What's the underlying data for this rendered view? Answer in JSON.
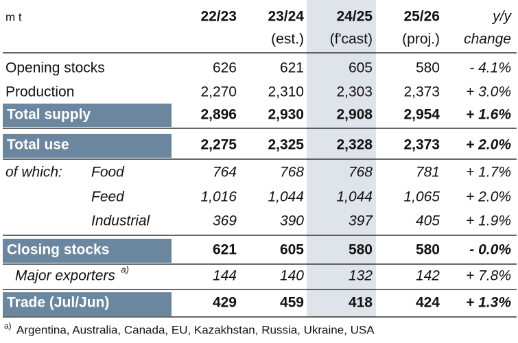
{
  "header": {
    "unit": "m t",
    "columns": [
      [
        "22/23"
      ],
      [
        "23/24",
        "(est.)"
      ],
      [
        "24/25",
        "(f'cast)"
      ],
      [
        "25/26",
        "(proj.)"
      ],
      [
        "y/y",
        "change"
      ]
    ]
  },
  "table": {
    "rows": [
      {
        "label": "Opening stocks",
        "cells": [
          "626",
          "621",
          "605",
          "580",
          "- 4.1%"
        ]
      },
      {
        "label": "Production",
        "cells": [
          "2,270",
          "2,310",
          "2,303",
          "2,373",
          "+ 3.0%"
        ]
      },
      {
        "label": "Total supply",
        "cells": [
          "2,896",
          "2,930",
          "2,908",
          "2,954",
          "+ 1.6%"
        ]
      },
      {
        "label": "Total use",
        "cells": [
          "2,275",
          "2,325",
          "2,328",
          "2,373",
          "+ 2.0%"
        ]
      },
      {
        "group": "of which:",
        "label": "Food",
        "cells": [
          "764",
          "768",
          "768",
          "781",
          "+ 1.7%"
        ]
      },
      {
        "label": "Feed",
        "cells": [
          "1,016",
          "1,044",
          "1,044",
          "1,065",
          "+ 2.0%"
        ]
      },
      {
        "label": "Industrial",
        "cells": [
          "369",
          "390",
          "397",
          "405",
          "+ 1.9%"
        ]
      },
      {
        "label": "Closing stocks",
        "cells": [
          "621",
          "605",
          "580",
          "580",
          "- 0.0%"
        ]
      },
      {
        "label": "Major exporters",
        "note": "a)",
        "cells": [
          "144",
          "140",
          "132",
          "142",
          "+ 7.8%"
        ]
      },
      {
        "label": "Trade (Jul/Jun)",
        "cells": [
          "429",
          "459",
          "418",
          "424",
          "+ 1.3%"
        ]
      }
    ]
  },
  "footnote": {
    "mark": "a)",
    "text": "Argentina, Australia, Canada, EU, Kazakhstan, Russia, Ukraine, USA"
  }
}
